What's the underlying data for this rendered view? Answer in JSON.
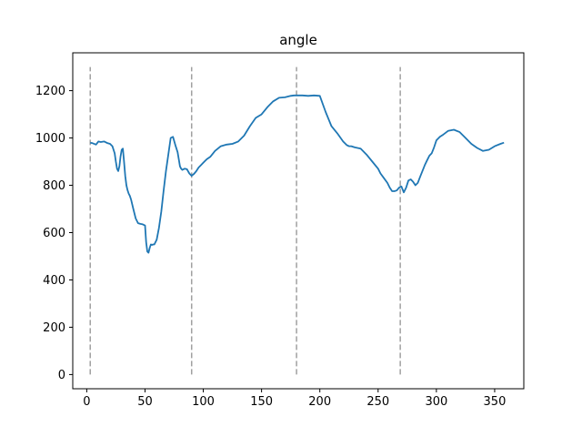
{
  "chart_data": {
    "type": "line",
    "title": "angle",
    "xlabel": "",
    "ylabel": "",
    "xlim": [
      -12,
      375
    ],
    "ylim": [
      -60,
      1360
    ],
    "xticks": [
      0,
      50,
      100,
      150,
      200,
      250,
      300,
      350
    ],
    "yticks": [
      0,
      200,
      400,
      600,
      800,
      1000,
      1200
    ],
    "grid": false,
    "series": [
      {
        "color": "#1f77b4",
        "x": [
          3,
          5,
          8,
          10,
          12,
          15,
          18,
          20,
          22,
          24,
          25,
          26,
          27,
          28,
          29,
          30,
          31,
          32,
          33,
          34,
          35,
          36,
          37,
          38,
          40,
          42,
          44,
          46,
          48,
          50,
          51,
          52,
          53,
          54,
          55,
          56,
          57,
          58,
          60,
          62,
          64,
          66,
          68,
          70,
          72,
          74,
          76,
          78,
          79,
          80,
          81,
          82,
          84,
          86,
          88,
          90,
          92,
          94,
          96,
          98,
          100,
          103,
          106,
          110,
          115,
          120,
          125,
          130,
          135,
          140,
          145,
          150,
          155,
          160,
          165,
          170,
          175,
          178,
          180,
          185,
          190,
          195,
          200,
          205,
          210,
          215,
          220,
          223,
          225,
          227,
          230,
          235,
          240,
          245,
          250,
          252,
          255,
          258,
          260,
          262,
          264,
          266,
          268,
          270,
          272,
          274,
          276,
          278,
          280,
          282,
          284,
          286,
          288,
          290,
          292,
          294,
          296,
          298,
          300,
          303,
          306,
          310,
          315,
          320,
          325,
          330,
          335,
          340,
          345,
          350,
          355,
          358
        ],
        "y": [
          980,
          978,
          972,
          985,
          983,
          985,
          978,
          975,
          965,
          935,
          900,
          870,
          860,
          880,
          920,
          950,
          955,
          900,
          840,
          800,
          780,
          765,
          755,
          740,
          700,
          660,
          640,
          637,
          635,
          630,
          560,
          520,
          515,
          535,
          550,
          548,
          550,
          550,
          570,
          620,
          690,
          780,
          860,
          930,
          1000,
          1005,
          970,
          940,
          910,
          880,
          870,
          865,
          870,
          868,
          850,
          840,
          848,
          860,
          875,
          885,
          895,
          910,
          920,
          945,
          965,
          972,
          975,
          985,
          1010,
          1050,
          1085,
          1100,
          1130,
          1155,
          1170,
          1172,
          1178,
          1180,
          1180,
          1180,
          1178,
          1180,
          1178,
          1110,
          1050,
          1020,
          985,
          970,
          965,
          965,
          960,
          955,
          930,
          900,
          870,
          850,
          830,
          810,
          790,
          775,
          775,
          778,
          790,
          795,
          770,
          790,
          820,
          825,
          815,
          800,
          810,
          835,
          860,
          885,
          905,
          925,
          935,
          960,
          990,
          1005,
          1015,
          1030,
          1035,
          1025,
          1000,
          975,
          958,
          945,
          950,
          965,
          975,
          980
        ]
      }
    ],
    "vlines": {
      "x": [
        3,
        90,
        180,
        269
      ],
      "y_range": [
        0,
        1300
      ],
      "color": "#a0a0a0",
      "style": "dashed"
    }
  }
}
